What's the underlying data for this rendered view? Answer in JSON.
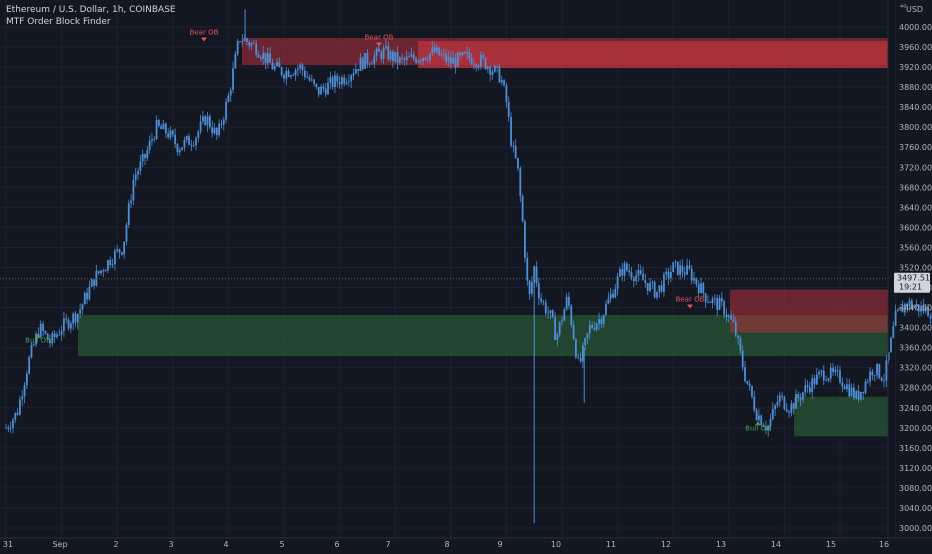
{
  "header": {
    "symbol_line": "Ethereum / U.S. Dollar, 1h, COINBASE",
    "indicator_line": "MTF Order Block Finder"
  },
  "axis": {
    "currency": "USD",
    "corner_glyph": "⁴⁰"
  },
  "price_tag": {
    "price": "3497.51",
    "countdown": "19:21"
  },
  "colors": {
    "background": "#131722",
    "candle": "#4f8fd6",
    "bear_zone": "#b2323c",
    "bull_zone": "#2e6b3a",
    "bear_label": "#e0555c",
    "bull_label": "#4c9a5a"
  },
  "chart_data": {
    "type": "candlestick",
    "y_range": [
      3000,
      4040
    ],
    "y_ticks": [
      "4000.00",
      "3960.00",
      "3920.00",
      "3880.00",
      "3840.00",
      "3800.00",
      "3760.00",
      "3720.00",
      "3680.00",
      "3640.00",
      "3600.00",
      "3560.00",
      "3520.00",
      "3480.00",
      "3440.00",
      "3400.00",
      "3360.00",
      "3320.00",
      "3280.00",
      "3240.00",
      "3200.00",
      "3160.00",
      "3120.00",
      "3080.00",
      "3040.00",
      "3000.00"
    ],
    "x_ticks": [
      "31",
      "Sep",
      "2",
      "3",
      "4",
      "5",
      "6",
      "7",
      "8",
      "9",
      "10",
      "11",
      "12",
      "13",
      "14",
      "15",
      "16"
    ],
    "current_price": 3497.51,
    "price_path": [
      [
        31.0,
        3200
      ],
      [
        31.2,
        3230
      ],
      [
        31.4,
        3330
      ],
      [
        31.6,
        3400
      ],
      [
        31.8,
        3370
      ],
      [
        32.0,
        3400
      ],
      [
        32.3,
        3430
      ],
      [
        32.6,
        3500
      ],
      [
        32.9,
        3540
      ],
      [
        33.1,
        3560
      ],
      [
        33.3,
        3700
      ],
      [
        33.5,
        3740
      ],
      [
        33.7,
        3800
      ],
      [
        33.9,
        3790
      ],
      [
        34.1,
        3760
      ],
      [
        34.4,
        3780
      ],
      [
        34.6,
        3820
      ],
      [
        34.8,
        3780
      ],
      [
        35.0,
        3860
      ],
      [
        35.2,
        3980
      ],
      [
        35.5,
        3960
      ],
      [
        35.8,
        3920
      ],
      [
        36.0,
        3910
      ],
      [
        36.3,
        3920
      ],
      [
        36.6,
        3870
      ],
      [
        36.9,
        3890
      ],
      [
        37.1,
        3900
      ],
      [
        37.4,
        3930
      ],
      [
        37.8,
        3950
      ],
      [
        38.1,
        3930
      ],
      [
        38.4,
        3940
      ],
      [
        38.7,
        3950
      ],
      [
        39.0,
        3930
      ],
      [
        39.3,
        3940
      ],
      [
        39.6,
        3930
      ],
      [
        39.9,
        3900
      ],
      [
        40.0,
        3850
      ],
      [
        40.1,
        3760
      ],
      [
        40.2,
        3720
      ],
      [
        40.3,
        3600
      ],
      [
        40.4,
        3450
      ],
      [
        40.5,
        3520
      ],
      [
        40.6,
        3460
      ],
      [
        40.8,
        3420
      ],
      [
        40.9,
        3380
      ],
      [
        41.1,
        3460
      ],
      [
        41.3,
        3320
      ],
      [
        41.5,
        3400
      ],
      [
        41.7,
        3420
      ],
      [
        41.9,
        3470
      ],
      [
        42.1,
        3520
      ],
      [
        42.4,
        3500
      ],
      [
        42.7,
        3470
      ],
      [
        43.0,
        3520
      ],
      [
        43.3,
        3510
      ],
      [
        43.6,
        3460
      ],
      [
        43.9,
        3440
      ],
      [
        44.1,
        3400
      ],
      [
        44.3,
        3300
      ],
      [
        44.5,
        3230
      ],
      [
        44.7,
        3200
      ],
      [
        44.9,
        3260
      ],
      [
        45.1,
        3240
      ],
      [
        45.4,
        3280
      ],
      [
        45.7,
        3310
      ],
      [
        46.0,
        3300
      ],
      [
        46.3,
        3260
      ],
      [
        46.6,
        3320
      ],
      [
        46.8,
        3300
      ],
      [
        47.0,
        3420
      ],
      [
        47.2,
        3450
      ],
      [
        47.4,
        3440
      ],
      [
        47.7,
        3430
      ],
      [
        48.0,
        3290
      ],
      [
        48.2,
        3250
      ],
      [
        48.4,
        3230
      ],
      [
        48.5,
        3200
      ],
      [
        48.7,
        3240
      ],
      [
        48.9,
        3190
      ],
      [
        49.1,
        3220
      ],
      [
        49.3,
        3270
      ],
      [
        49.5,
        3280
      ],
      [
        49.8,
        3300
      ],
      [
        50.1,
        3330
      ],
      [
        50.4,
        3360
      ],
      [
        50.7,
        3380
      ],
      [
        51.0,
        3440
      ],
      [
        51.2,
        3420
      ],
      [
        51.4,
        3400
      ],
      [
        51.7,
        3420
      ],
      [
        51.9,
        3440
      ],
      [
        52.1,
        3470
      ]
    ],
    "spikes": [
      {
        "day": 40.5,
        "low": 3010
      },
      {
        "day": 35.3,
        "high": 4035
      },
      {
        "day": 41.4,
        "low": 3250
      },
      {
        "day": 48.7,
        "low": 3110
      }
    ],
    "order_blocks": [
      {
        "kind": "bear",
        "x0": 37.0,
        "x1": 52.0,
        "y0": 3924,
        "y1": 3978
      },
      {
        "kind": "bear",
        "x0": 40.5,
        "x1": 52.0,
        "y0": 3918,
        "y1": 3972
      },
      {
        "kind": "bull",
        "x0": 32.0,
        "x1": 52.0,
        "y0": 3343,
        "y1": 3425
      },
      {
        "kind": "bear",
        "x0": 48.3,
        "x1": 52.0,
        "y0": 3390,
        "y1": 3476
      },
      {
        "kind": "bull",
        "x0": 50.4,
        "x1": 52.0,
        "y0": 3183,
        "y1": 3262
      }
    ],
    "labels": [
      {
        "text": "Bear OB",
        "kind": "bear",
        "day": 35.6,
        "price": 3985
      },
      {
        "text": "Bear OB",
        "kind": "bear",
        "day": 39.7,
        "price": 3975
      },
      {
        "text": "Bull OB",
        "kind": "bull",
        "day": 31.6,
        "price": 3370
      },
      {
        "text": "Bear OB",
        "kind": "bear",
        "day": 47.4,
        "price": 3452
      },
      {
        "text": "Bull OB",
        "kind": "bull",
        "day": 48.8,
        "price": 3195
      }
    ]
  }
}
